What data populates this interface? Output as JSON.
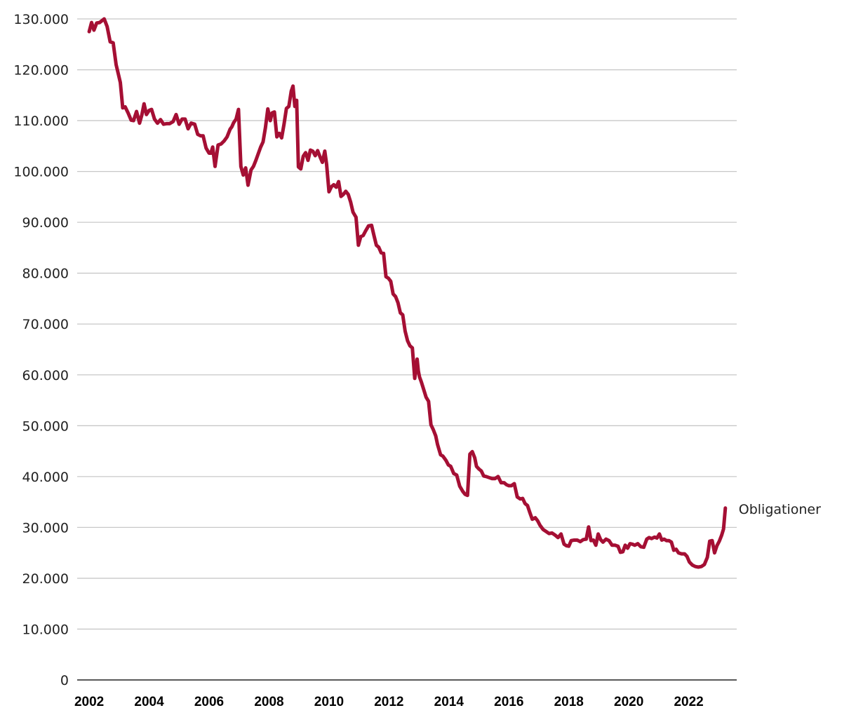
{
  "chart_data": {
    "type": "line",
    "title": "",
    "xlabel": "",
    "ylabel": "",
    "xlim": [
      2001.6,
      2023.6
    ],
    "ylim": [
      0,
      130000
    ],
    "y_ticks": [
      0,
      10000,
      20000,
      30000,
      40000,
      50000,
      60000,
      70000,
      80000,
      90000,
      100000,
      110000,
      120000,
      130000
    ],
    "y_tick_labels": [
      "0",
      "10.000",
      "20.000",
      "30.000",
      "40.000",
      "50.000",
      "60.000",
      "70.000",
      "80.000",
      "90.000",
      "100.000",
      "110.000",
      "120.000",
      "130.000"
    ],
    "x_ticks": [
      2002,
      2004,
      2006,
      2008,
      2010,
      2012,
      2014,
      2016,
      2018,
      2020,
      2022
    ],
    "x_tick_labels": [
      "2002",
      "2004",
      "2006",
      "2008",
      "2010",
      "2012",
      "2014",
      "2016",
      "2018",
      "2020",
      "2022"
    ],
    "grid": "horizontal",
    "legend": "none",
    "series": [
      {
        "name": "Obligationer",
        "color": "#a50f34",
        "x": [
          2002.0,
          2002.08,
          2002.16,
          2002.25,
          2002.35,
          2002.5,
          2002.6,
          2002.7,
          2002.8,
          2002.9,
          2002.96,
          2003.04,
          2003.12,
          2003.2,
          2003.3,
          2003.4,
          2003.48,
          2003.58,
          2003.68,
          2003.76,
          2003.83,
          2003.91,
          2004.0,
          2004.08,
          2004.18,
          2004.28,
          2004.38,
          2004.48,
          2004.58,
          2004.68,
          2004.8,
          2004.9,
          2005.0,
          2005.1,
          2005.2,
          2005.3,
          2005.4,
          2005.52,
          2005.62,
          2005.72,
          2005.8,
          2005.9,
          2006.0,
          2006.06,
          2006.12,
          2006.2,
          2006.3,
          2006.4,
          2006.5,
          2006.6,
          2006.7,
          2006.76,
          2006.82,
          2006.9,
          2006.98,
          2007.06,
          2007.14,
          2007.22,
          2007.3,
          2007.4,
          2007.48,
          2007.56,
          2007.64,
          2007.72,
          2007.8,
          2007.88,
          2007.96,
          2008.04,
          2008.1,
          2008.18,
          2008.26,
          2008.34,
          2008.42,
          2008.5,
          2008.58,
          2008.66,
          2008.74,
          2008.8,
          2008.86,
          2008.92,
          2008.98,
          2009.06,
          2009.14,
          2009.22,
          2009.3,
          2009.38,
          2009.46,
          2009.54,
          2009.62,
          2009.7,
          2009.78,
          2009.86,
          2009.92,
          2010.0,
          2010.08,
          2010.16,
          2010.24,
          2010.32,
          2010.4,
          2010.48,
          2010.56,
          2010.64,
          2010.72,
          2010.8,
          2010.9,
          2010.98,
          2011.06,
          2011.14,
          2011.22,
          2011.32,
          2011.42,
          2011.5,
          2011.58,
          2011.66,
          2011.74,
          2011.82,
          2011.9,
          2011.98,
          2012.06,
          2012.14,
          2012.22,
          2012.3,
          2012.38,
          2012.46,
          2012.54,
          2012.62,
          2012.7,
          2012.78,
          2012.86,
          2012.94,
          2012.98,
          2013.02,
          2013.08,
          2013.16,
          2013.24,
          2013.32,
          2013.4,
          2013.48,
          2013.56,
          2013.62,
          2013.72,
          2013.8,
          2013.9,
          2013.98,
          2014.06,
          2014.16,
          2014.26,
          2014.36,
          2014.46,
          2014.54,
          2014.62,
          2014.7,
          2014.78,
          2014.86,
          2014.92,
          2015.0,
          2015.08,
          2015.16,
          2015.24,
          2015.34,
          2015.44,
          2015.54,
          2015.64,
          2015.74,
          2015.84,
          2015.92,
          2016.0,
          2016.08,
          2016.18,
          2016.28,
          2016.38,
          2016.46,
          2016.54,
          2016.62,
          2016.7,
          2016.78,
          2016.88,
          2016.96,
          2017.04,
          2017.14,
          2017.24,
          2017.34,
          2017.44,
          2017.54,
          2017.64,
          2017.74,
          2017.84,
          2017.92,
          2018.0,
          2018.08,
          2018.18,
          2018.28,
          2018.38,
          2018.48,
          2018.58,
          2018.66,
          2018.74,
          2018.82,
          2018.9,
          2018.98,
          2019.06,
          2019.14,
          2019.24,
          2019.34,
          2019.44,
          2019.54,
          2019.64,
          2019.72,
          2019.8,
          2019.88,
          2019.96,
          2020.04,
          2020.12,
          2020.2,
          2020.3,
          2020.4,
          2020.5,
          2020.6,
          2020.68,
          2020.76,
          2020.86,
          2020.94,
          2021.02,
          2021.1,
          2021.18,
          2021.26,
          2021.34,
          2021.42,
          2021.5,
          2021.58,
          2021.66,
          2021.76,
          2021.86,
          2021.94,
          2022.02,
          2022.12,
          2022.22,
          2022.32,
          2022.42,
          2022.52,
          2022.62,
          2022.7,
          2022.78,
          2022.86,
          2022.94,
          2023.02,
          2023.1,
          2023.16,
          2023.22
        ],
        "y": [
          127500,
          129300,
          127800,
          129200,
          129300,
          130000,
          128500,
          125500,
          125300,
          121000,
          119500,
          117500,
          112500,
          112700,
          111500,
          110100,
          110000,
          111800,
          109500,
          111200,
          113300,
          111200,
          112000,
          112200,
          110300,
          109500,
          110200,
          109300,
          109400,
          109400,
          109800,
          111200,
          109300,
          110300,
          110300,
          108400,
          109500,
          109300,
          107300,
          107000,
          107000,
          104600,
          103600,
          103600,
          104800,
          101000,
          105200,
          105400,
          106000,
          106800,
          108300,
          108800,
          109600,
          110300,
          112200,
          101000,
          99300,
          100700,
          97300,
          100300,
          101000,
          102200,
          103500,
          104800,
          105800,
          108600,
          112300,
          110000,
          111500,
          111700,
          106800,
          107500,
          106600,
          109300,
          112400,
          112800,
          115800,
          116800,
          112800,
          114000,
          100900,
          100500,
          103000,
          103700,
          102200,
          104200,
          104000,
          103100,
          104100,
          102900,
          101800,
          104000,
          101400,
          96000,
          97000,
          97400,
          96900,
          98000,
          95100,
          95500,
          96100,
          95500,
          94000,
          92000,
          91000,
          85500,
          87200,
          87400,
          88300,
          89300,
          89400,
          87400,
          85500,
          85100,
          84000,
          83900,
          79300,
          79000,
          78400,
          75900,
          75400,
          74200,
          72200,
          71800,
          68600,
          66700,
          65700,
          65300,
          59300,
          63100,
          60800,
          59600,
          58600,
          57100,
          55600,
          54800,
          50200,
          49200,
          48000,
          46300,
          44300,
          44000,
          43200,
          42300,
          42000,
          40600,
          40300,
          38100,
          37100,
          36500,
          36300,
          44400,
          44900,
          43700,
          42000,
          41500,
          41100,
          40100,
          40000,
          39800,
          39600,
          39600,
          40000,
          38800,
          38800,
          38400,
          38200,
          38200,
          38600,
          36000,
          35600,
          35700,
          34700,
          34300,
          32900,
          31600,
          31900,
          31300,
          30400,
          29600,
          29200,
          28800,
          28900,
          28500,
          28000,
          28700,
          26700,
          26400,
          26300,
          27400,
          27500,
          27500,
          27200,
          27600,
          27700,
          30100,
          27400,
          27500,
          26500,
          28700,
          27600,
          27100,
          27700,
          27400,
          26500,
          26500,
          26300,
          25100,
          25200,
          26500,
          25900,
          26800,
          26700,
          26500,
          26800,
          26200,
          26100,
          27700,
          28000,
          27800,
          28100,
          27900,
          28700,
          27500,
          27700,
          27400,
          27400,
          27100,
          25500,
          25700,
          25000,
          24800,
          24800,
          24300,
          23200,
          22600,
          22300,
          22200,
          22300,
          22700,
          24100,
          27300,
          27400,
          25000,
          26400,
          27300,
          28500,
          29700,
          33800
        ]
      }
    ]
  }
}
